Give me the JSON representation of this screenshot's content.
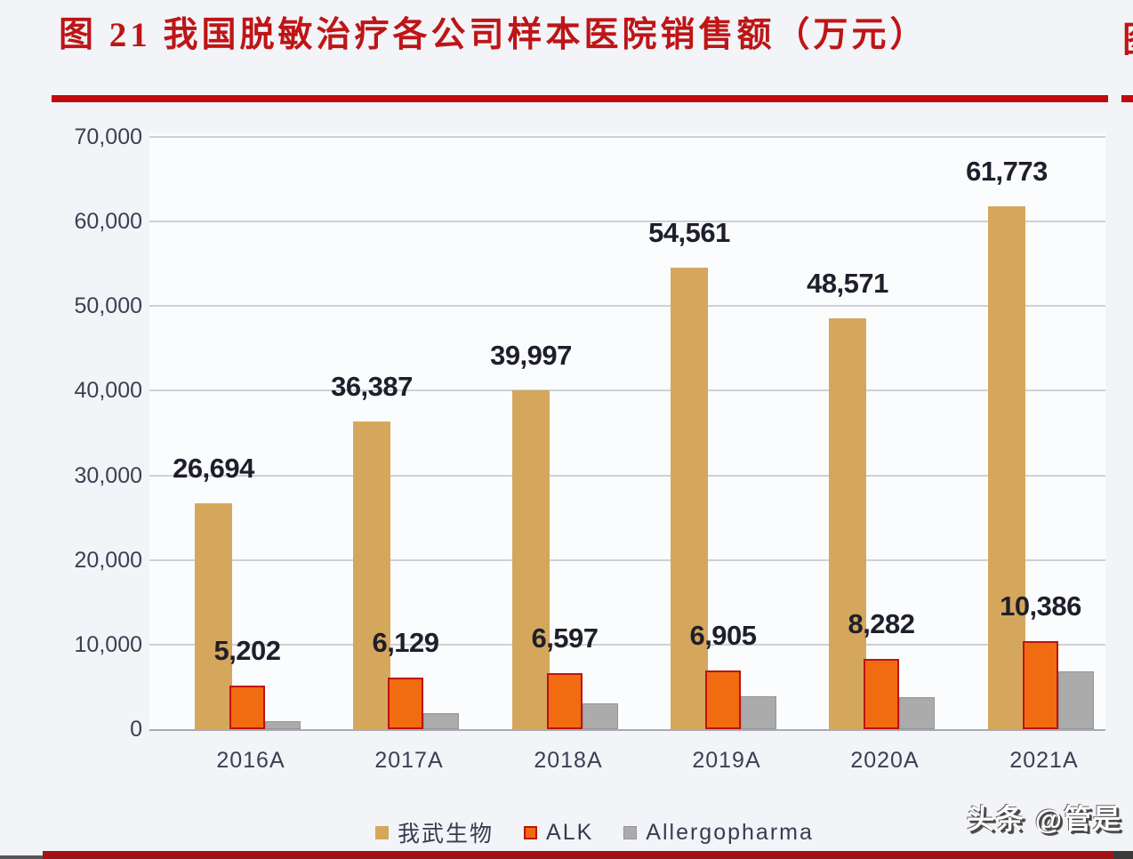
{
  "title": {
    "text": "图 21 我国脱敏治疗各公司样本医院销售额（万元）",
    "clipped_fragment": "图"
  },
  "watermark": "头条 @管是",
  "colors": {
    "title_red": "#BE1516",
    "rule_red": "#C00A0C",
    "bottom_rule_maroon": "#A21318",
    "series_tan": "#D5A75D",
    "series_orange": "#F16C11",
    "series_orange_border": "#BE1212",
    "series_gray": "#ABABAB",
    "axis_text": "#3E3E52",
    "data_label_text": "#1F1F2B"
  },
  "chart_data": {
    "type": "bar",
    "title": "图 21 我国脱敏治疗各公司样本医院销售额（万元）",
    "xlabel": "",
    "ylabel": "",
    "ylim": [
      0,
      70000
    ],
    "ytick_step": 10000,
    "yticks_labels": [
      "0",
      "10,000",
      "20,000",
      "30,000",
      "40,000",
      "50,000",
      "60,000",
      "70,000"
    ],
    "grid": true,
    "legend_position": "bottom",
    "categories": [
      "2016A",
      "2017A",
      "2018A",
      "2019A",
      "2020A",
      "2021A"
    ],
    "series": [
      {
        "name": "我武生物",
        "color": "#D5A75D",
        "border": "",
        "border_width": 0,
        "values": [
          26694,
          36387,
          39997,
          54561,
          48571,
          61773
        ],
        "labels": [
          "26,694",
          "36,387",
          "39,997",
          "54,561",
          "48,571",
          "61,773"
        ]
      },
      {
        "name": "ALK",
        "color": "#F16C11",
        "border": "#BE1212",
        "border_width": 2,
        "values": [
          5202,
          6129,
          6597,
          6905,
          8282,
          10386
        ],
        "labels": [
          "5,202",
          "6,129",
          "6,597",
          "6,905",
          "8,282",
          "10,386"
        ]
      },
      {
        "name": "Allergopharma",
        "color": "#ABABAB",
        "border": "#949494",
        "border_width": 1,
        "values": [
          950,
          1900,
          3100,
          3900,
          3800,
          6800
        ],
        "labels": []
      }
    ]
  },
  "legend": {
    "items": [
      {
        "label": "我武生物"
      },
      {
        "label": "ALK"
      },
      {
        "label": "Allergopharma"
      }
    ]
  }
}
